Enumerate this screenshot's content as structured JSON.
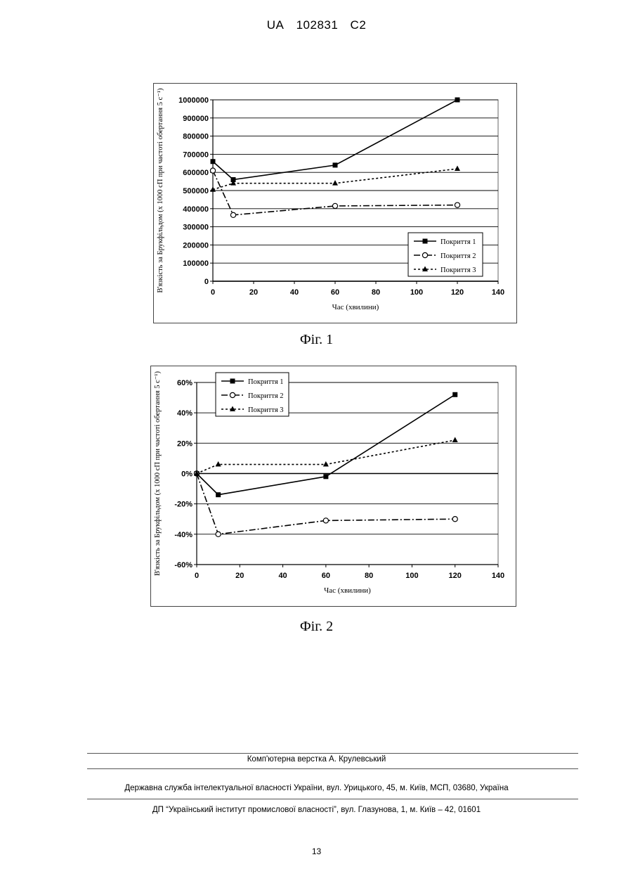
{
  "header": {
    "country": "UA",
    "number": "102831",
    "kind": "C2"
  },
  "figures": [
    {
      "caption": "Фіг. 1"
    },
    {
      "caption": "Фіг. 2"
    }
  ],
  "chart_data": [
    {
      "type": "line",
      "title": "",
      "xlabel": "Час (хвилини)",
      "ylabel": "В'язкість за Брукфільдом (х 1000 сП при частоті обертання 5 с⁻¹)",
      "xlim": [
        0,
        140
      ],
      "ylim": [
        0,
        1000000
      ],
      "xticks": [
        0,
        20,
        40,
        60,
        80,
        100,
        120,
        140
      ],
      "yticks": [
        0,
        100000,
        200000,
        300000,
        400000,
        500000,
        600000,
        700000,
        800000,
        900000,
        1000000
      ],
      "ytick_labels": [
        "0",
        "100000",
        "200000",
        "300000",
        "400000",
        "500000",
        "600000",
        "700000",
        "800000",
        "900000",
        "1000000"
      ],
      "xtick_labels": [
        "0",
        "20",
        "40",
        "60",
        "80",
        "100",
        "120",
        "140"
      ],
      "grid": "horizontal",
      "legend_position": "bottom-right",
      "series": [
        {
          "name": "Покриття 1",
          "marker": "square",
          "dash": "solid",
          "x": [
            0,
            10,
            60,
            120
          ],
          "y": [
            660000,
            560000,
            640000,
            1000000
          ]
        },
        {
          "name": "Покриття 2",
          "marker": "circle-open",
          "dash": "dashdot",
          "x": [
            0,
            10,
            60,
            120
          ],
          "y": [
            610000,
            365000,
            415000,
            420000
          ]
        },
        {
          "name": "Покриття 3",
          "marker": "triangle",
          "dash": "dotted",
          "x": [
            0,
            10,
            60,
            120
          ],
          "y": [
            505000,
            540000,
            540000,
            620000
          ]
        }
      ]
    },
    {
      "type": "line",
      "title": "",
      "xlabel": "Час (хвилини)",
      "ylabel": "В'язкість за Брукфільдом (х 1000 сП при частоті обертання 5 с⁻¹)",
      "xlim": [
        0,
        140
      ],
      "ylim": [
        -60,
        60
      ],
      "xticks": [
        0,
        20,
        40,
        60,
        80,
        100,
        120,
        140
      ],
      "yticks": [
        -60,
        -40,
        -20,
        0,
        20,
        40,
        60
      ],
      "ytick_labels": [
        "-60%",
        "-40%",
        "-20%",
        "0%",
        "20%",
        "40%",
        "60%"
      ],
      "xtick_labels": [
        "0",
        "20",
        "40",
        "60",
        "80",
        "100",
        "120",
        "140"
      ],
      "grid": "horizontal",
      "legend_position": "top-left",
      "series": [
        {
          "name": "Покриття 1",
          "marker": "square",
          "dash": "solid",
          "x": [
            0,
            10,
            60,
            120
          ],
          "y": [
            0,
            -14,
            -2,
            52
          ]
        },
        {
          "name": "Покриття 2",
          "marker": "circle-open",
          "dash": "dashdot",
          "x": [
            0,
            10,
            60,
            120
          ],
          "y": [
            0,
            -40,
            -31,
            -30
          ]
        },
        {
          "name": "Покриття 3",
          "marker": "triangle",
          "dash": "dotted",
          "x": [
            0,
            10,
            60,
            120
          ],
          "y": [
            0,
            6,
            6,
            22
          ]
        }
      ]
    }
  ],
  "footer": {
    "layout_credit": "Комп'ютерна верстка А. Крулевський",
    "office": "Державна служба інтелектуальної власності України, вул. Урицького, 45, м. Київ, МСП, 03680, Україна",
    "institute": "ДП “Український інститут промислової власності”, вул. Глазунова, 1, м. Київ – 42, 01601"
  },
  "page_number": "13"
}
